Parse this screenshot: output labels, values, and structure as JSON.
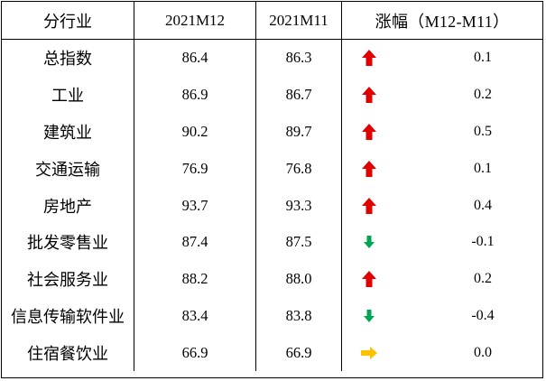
{
  "header": {
    "col_industry": "分行业",
    "col_m12": "2021M12",
    "col_m11": "2021M11",
    "col_change": "涨幅（M12-M11）"
  },
  "colors": {
    "up": "#e00000",
    "down": "#00a651",
    "flat": "#ffc000"
  },
  "rows": [
    {
      "industry": "总指数",
      "m12": "86.4",
      "m11": "86.3",
      "direction": "up-arrow-icon",
      "change": "0.1"
    },
    {
      "industry": "工业",
      "m12": "86.9",
      "m11": "86.7",
      "direction": "up-arrow-icon",
      "change": "0.2"
    },
    {
      "industry": "建筑业",
      "m12": "90.2",
      "m11": "89.7",
      "direction": "up-arrow-icon",
      "change": "0.5"
    },
    {
      "industry": "交通运输",
      "m12": "76.9",
      "m11": "76.8",
      "direction": "up-arrow-icon",
      "change": "0.1"
    },
    {
      "industry": "房地产",
      "m12": "93.7",
      "m11": "93.3",
      "direction": "up-arrow-icon",
      "change": "0.4"
    },
    {
      "industry": "批发零售业",
      "m12": "87.4",
      "m11": "87.5",
      "direction": "down-arrow-icon",
      "change": "-0.1"
    },
    {
      "industry": "社会服务业",
      "m12": "88.2",
      "m11": "88.0",
      "direction": "up-arrow-icon",
      "change": "0.2"
    },
    {
      "industry": "信息传输软件业",
      "m12": "83.4",
      "m11": "83.8",
      "direction": "down-arrow-icon",
      "change": "-0.4"
    },
    {
      "industry": "住宿餐饮业",
      "m12": "66.9",
      "m11": "66.9",
      "direction": "right-arrow-icon",
      "change": "0.0"
    }
  ]
}
